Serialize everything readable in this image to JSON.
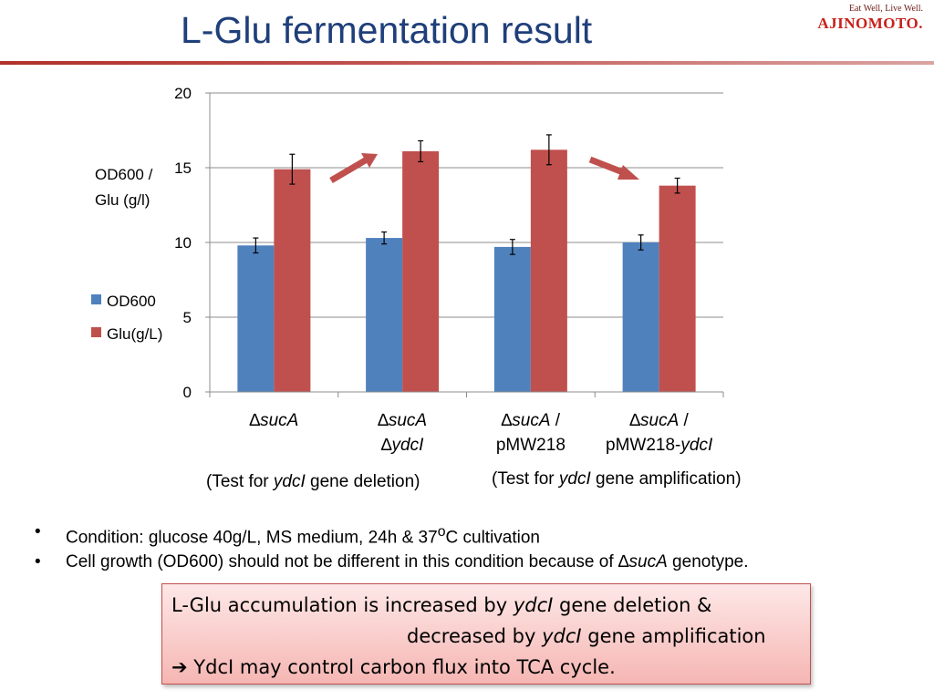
{
  "header": {
    "title": "L-Glu fermentation result",
    "logo_tagline": "Eat Well, Live Well.",
    "logo_word": "AJINOMOTO."
  },
  "chart_data": {
    "type": "bar",
    "ylabel_line1": "OD600 /",
    "ylabel_line2": "Glu (g/l)",
    "ylim": [
      0,
      20
    ],
    "yticks": [
      "0",
      "5",
      "10",
      "15",
      "20"
    ],
    "grid": true,
    "legend_placement": "left",
    "categories": [
      {
        "line1_symbol": "∆",
        "line1_italic": "sucA",
        "line1_rest": "",
        "line2_symbol": "",
        "line2_text": "",
        "line2_italic": ""
      },
      {
        "line1_symbol": "∆",
        "line1_italic": "sucA",
        "line1_rest": "",
        "line2_symbol": "∆",
        "line2_text": "",
        "line2_italic": "ydcI"
      },
      {
        "line1_symbol": "∆",
        "line1_italic": "sucA",
        "line1_rest": " /",
        "line2_symbol": "",
        "line2_text": "pMW218",
        "line2_italic": ""
      },
      {
        "line1_symbol": "∆",
        "line1_italic": "sucA",
        "line1_rest": " /",
        "line2_symbol": "",
        "line2_text": "pMW218-",
        "line2_italic": "ydcI"
      }
    ],
    "series": [
      {
        "name": "OD600",
        "color": "#4f81bd",
        "values": [
          9.8,
          10.3,
          9.7,
          10.0
        ],
        "errors": [
          0.5,
          0.4,
          0.5,
          0.5
        ]
      },
      {
        "name": "Glu(g/L)",
        "color": "#c0504d",
        "values": [
          14.9,
          16.1,
          16.2,
          13.8
        ],
        "errors": [
          1.0,
          0.7,
          1.0,
          0.5
        ]
      }
    ],
    "annotations": {
      "deletion_note": {
        "pre": "(Test for ",
        "italic": "ydcI",
        "post": " gene deletion)"
      },
      "amplification_note": {
        "pre": "(Test for ",
        "italic": "ydcI",
        "post": " gene amplification)"
      },
      "arrows": [
        "increase",
        "decrease"
      ]
    },
    "arrow_color": "#c0504d"
  },
  "bullets": [
    {
      "pre": "Condition: glucose 40g/L, MS medium, 24h & 37",
      "sup": "o",
      "post": "C cultivation"
    },
    {
      "pre": "Cell growth (OD600) should not be different in this condition because of ",
      "symbol": "∆",
      "italic": "sucA",
      "post": " genotype."
    }
  ],
  "summary": {
    "line1_pre": "L-Glu accumulation is increased by ",
    "line1_italic": "ydcI",
    "line1_post": " gene deletion &",
    "line2_pre": "decreased by ",
    "line2_italic": "ydcI",
    "line2_post": " gene amplification",
    "line3_arrow": "➔",
    "line3_text": " YdcI may control carbon flux into TCA cycle."
  }
}
